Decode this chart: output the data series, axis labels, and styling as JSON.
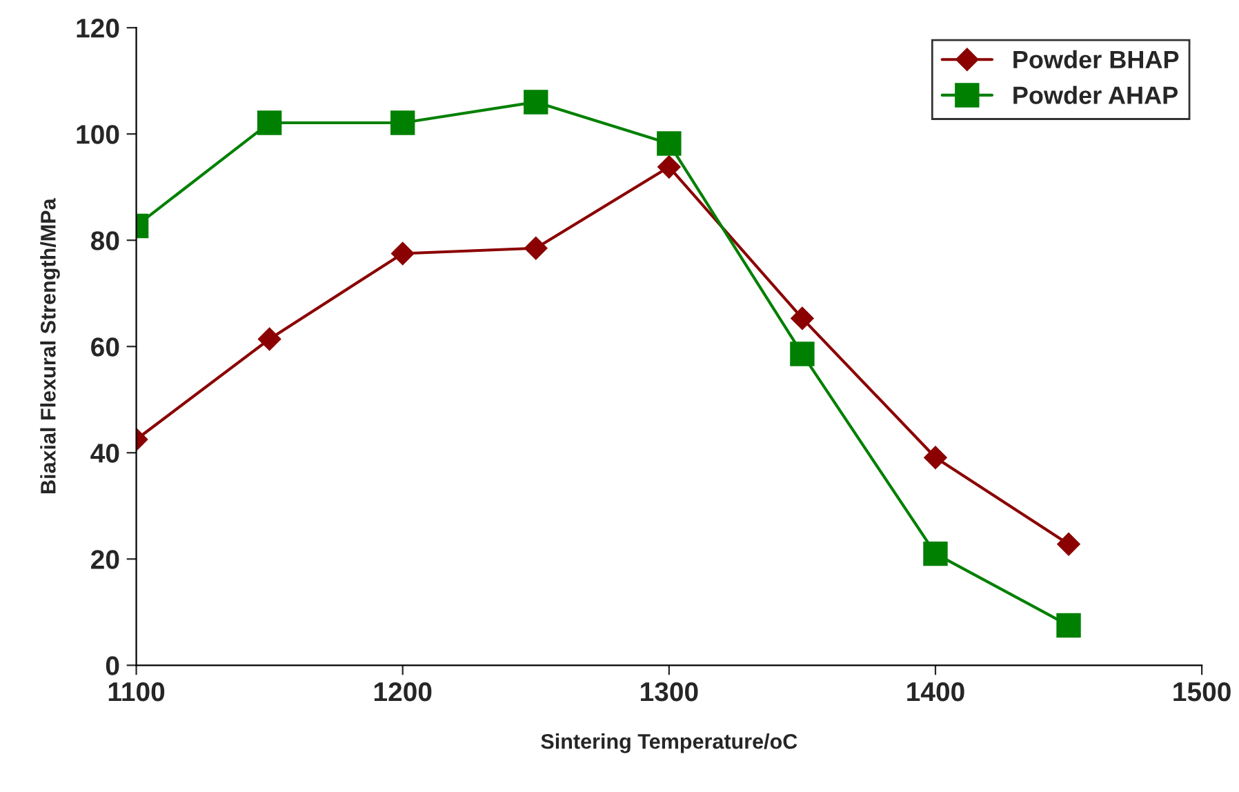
{
  "chart_data": {
    "type": "line",
    "xlabel": "Sintering Temperature/oC",
    "ylabel": "Biaxial Flexural Strength/MPa",
    "x": [
      1100,
      1150,
      1200,
      1250,
      1300,
      1350,
      1400,
      1450
    ],
    "series": [
      {
        "name": "Powder BHAP",
        "color": "#8b0000",
        "marker": "diamond",
        "values": [
          42.5,
          61.4,
          77.5,
          78.5,
          93.8,
          65.3,
          39.1,
          22.8
        ]
      },
      {
        "name": "Powder AHAP",
        "color": "#008000",
        "marker": "square",
        "values": [
          82.7,
          102.1,
          102.1,
          106,
          98.2,
          58.6,
          21,
          7.5
        ]
      }
    ],
    "xlim": [
      1100,
      1500
    ],
    "xticks": [
      1100,
      1200,
      1300,
      1400,
      1500
    ],
    "ylim": [
      0,
      120
    ],
    "yticks": [
      0,
      20,
      40,
      60,
      80,
      100,
      120
    ],
    "grid": false,
    "legend": "top right",
    "line_style": "solid"
  }
}
